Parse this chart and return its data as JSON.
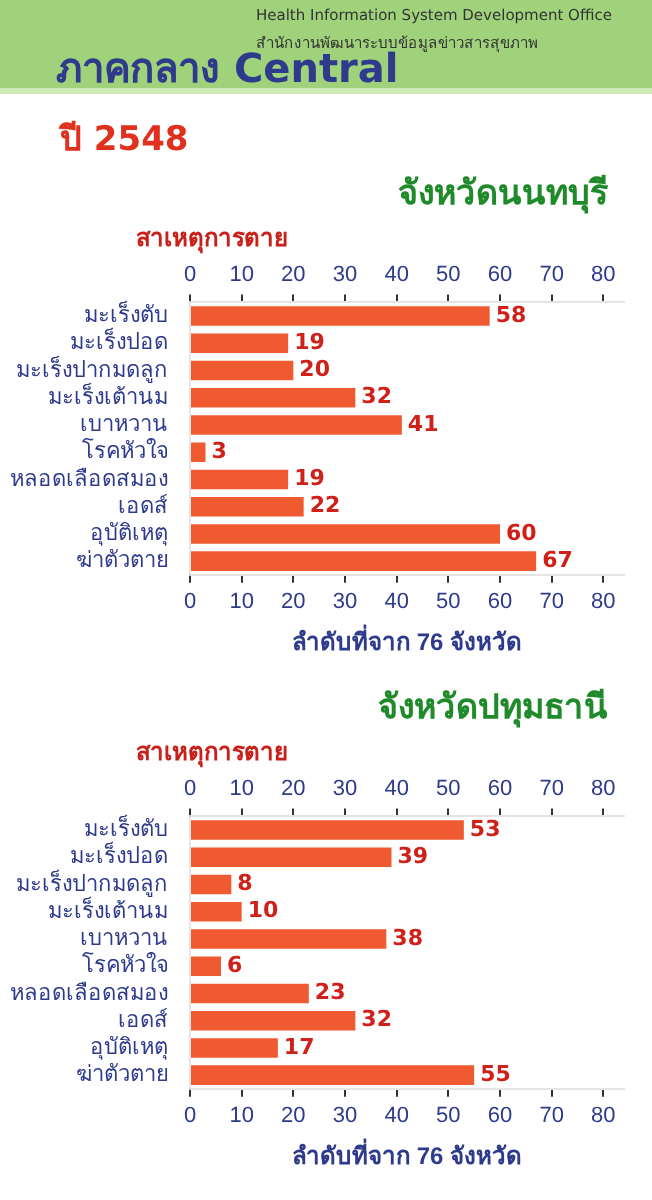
{
  "chart_data": [
    {
      "type": "bar",
      "orientation": "horizontal",
      "title": "จังหวัดนนทบุรี",
      "ylabel": "สาเหตุการตาย",
      "xlabel": "ลำดับที่จาก 76 จังหวัด",
      "annotations": [
        "ภาคกลาง Central",
        "Health Information System Development Office",
        "สำนักงานพัฒนาระบบข้อมูลข่าวสารสุขภาพ",
        "ปี 2548"
      ],
      "categories": [
        "มะเร็งตับ",
        "มะเร็งปอด",
        "มะเร็งปากมดลูก",
        "มะเร็งเต้านม",
        "เบาหวาน",
        "โรคหัวใจ",
        "หลอดเลือดสมอง",
        "เอดส์",
        "อุบัติเหตุ",
        "ฆ่าตัวตาย"
      ],
      "values": [
        58,
        19,
        20,
        32,
        41,
        3,
        19,
        22,
        60,
        67
      ],
      "color": "#f05a30",
      "data_labels": true,
      "xlim": [
        0,
        84
      ],
      "xticks": [
        0,
        10,
        20,
        30,
        40,
        50,
        60,
        70,
        80
      ],
      "x2lim": [
        0,
        84
      ],
      "x2ticks": [
        0,
        10,
        20,
        30,
        40,
        50,
        60,
        70,
        80
      ]
    },
    {
      "type": "bar",
      "orientation": "horizontal",
      "title": "จังหวัดปทุมธานี",
      "ylabel": "สาเหตุการตาย",
      "xlabel": "ลำดับที่จาก 76 จังหวัด",
      "categories": [
        "มะเร็งตับ",
        "มะเร็งปอด",
        "มะเร็งปากมดลูก",
        "มะเร็งเต้านม",
        "เบาหวาน",
        "โรคหัวใจ",
        "หลอดเลือดสมอง",
        "เอดส์",
        "อุบัติเหตุ",
        "ฆ่าตัวตาย"
      ],
      "values": [
        53,
        39,
        8,
        10,
        38,
        6,
        23,
        32,
        17,
        55
      ],
      "color": "#f05a30",
      "data_labels": true,
      "xlim": [
        0,
        84
      ],
      "xticks": [
        0,
        10,
        20,
        30,
        40,
        50,
        60,
        70,
        80
      ],
      "x2lim": [
        0,
        84
      ],
      "x2ticks": [
        0,
        10,
        20,
        30,
        40,
        50,
        60,
        70,
        80
      ]
    }
  ]
}
